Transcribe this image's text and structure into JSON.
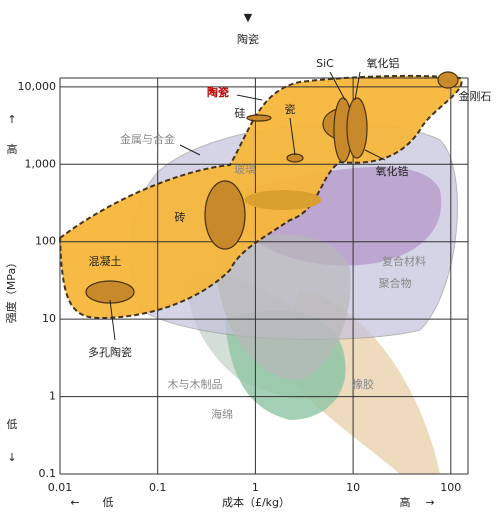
{
  "chart_data": {
    "type": "ashby",
    "top_label": "陶瓷",
    "y_label": "强度（MPa）",
    "y_high": "高",
    "y_low": "低",
    "x_label": "成本（£/kg）",
    "x_low": "低",
    "x_high": "高",
    "log_x": true,
    "log_y": true,
    "grid": true,
    "xlim": [
      0.01,
      150
    ],
    "ylim": [
      0.1,
      13000
    ],
    "xticks": [
      0.01,
      0.1,
      1,
      10,
      100
    ],
    "yticks": [
      0.1,
      1,
      10,
      100,
      {
        "value": 1000,
        "label": "1,000"
      },
      {
        "value": 10000,
        "label": "10,000"
      }
    ],
    "annotations": [
      "陶瓷",
      "硅",
      "瓷",
      "SiC",
      "氧化铝",
      "金刚石",
      "金属与合金",
      "玻璃",
      "砖",
      "氧化锆",
      "复合材料",
      "聚合物",
      "混凝土",
      "多孔陶瓷",
      "木与木制品",
      "橡胶",
      "海绵"
    ]
  }
}
